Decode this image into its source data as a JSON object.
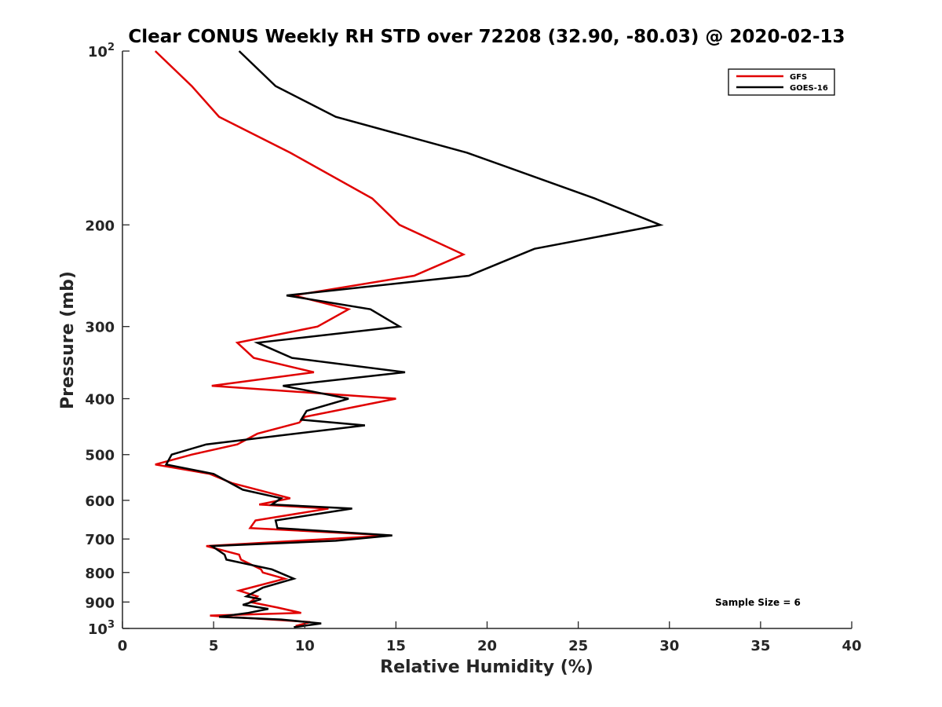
{
  "chart_data": {
    "type": "line",
    "title": "Clear CONUS Weekly RH STD over 72208 (32.90, -80.03) @ 2020-02-13",
    "xlabel": "Relative Humidity (%)",
    "ylabel": "Pressure (mb)",
    "xlim": [
      0,
      40
    ],
    "ylim": [
      100,
      1000
    ],
    "y_scale": "log",
    "y_reversed": true,
    "x_ticks": [
      0,
      5,
      10,
      15,
      20,
      25,
      30,
      35,
      40
    ],
    "x_tick_labels": [
      "0",
      "5",
      "10",
      "15",
      "20",
      "25",
      "30",
      "35",
      "40"
    ],
    "y_ticks": [
      100,
      200,
      300,
      400,
      500,
      600,
      700,
      800,
      900,
      1000
    ],
    "y_tick_labels": [
      {
        "base": "10",
        "exp": "2"
      },
      {
        "base": "200",
        "exp": ""
      },
      {
        "base": "300",
        "exp": ""
      },
      {
        "base": "400",
        "exp": ""
      },
      {
        "base": "500",
        "exp": ""
      },
      {
        "base": "600",
        "exp": ""
      },
      {
        "base": "700",
        "exp": ""
      },
      {
        "base": "800",
        "exp": ""
      },
      {
        "base": "900",
        "exp": ""
      },
      {
        "base": "10",
        "exp": "3"
      }
    ],
    "grid": false,
    "legend_position": "top-right",
    "annotation": "Sample Size = 6",
    "series": [
      {
        "name": "GFS",
        "color": "#e00000",
        "points": [
          [
            1.8,
            100
          ],
          [
            3.8,
            115
          ],
          [
            5.3,
            130
          ],
          [
            9.2,
            150
          ],
          [
            13.7,
            180
          ],
          [
            15.2,
            200
          ],
          [
            18.7,
            225
          ],
          [
            16.0,
            245
          ],
          [
            9.4,
            265
          ],
          [
            12.4,
            280
          ],
          [
            10.7,
            300
          ],
          [
            6.3,
            320
          ],
          [
            7.2,
            340
          ],
          [
            10.5,
            360
          ],
          [
            4.9,
            380
          ],
          [
            15.0,
            400
          ],
          [
            10.0,
            430
          ],
          [
            9.7,
            440
          ],
          [
            7.4,
            460
          ],
          [
            6.3,
            480
          ],
          [
            3.8,
            500
          ],
          [
            1.8,
            520
          ],
          [
            4.8,
            540
          ],
          [
            6.0,
            560
          ],
          [
            9.2,
            595
          ],
          [
            7.5,
            610
          ],
          [
            11.3,
            620
          ],
          [
            7.3,
            650
          ],
          [
            7.0,
            670
          ],
          [
            14.7,
            690
          ],
          [
            4.6,
            720
          ],
          [
            6.4,
            745
          ],
          [
            6.5,
            760
          ],
          [
            7.6,
            790
          ],
          [
            7.7,
            800
          ],
          [
            8.9,
            820
          ],
          [
            6.4,
            860
          ],
          [
            7.4,
            880
          ],
          [
            7.0,
            900
          ],
          [
            8.5,
            920
          ],
          [
            9.8,
            940
          ],
          [
            4.8,
            950
          ],
          [
            10.3,
            975
          ],
          [
            9.5,
            990
          ]
        ]
      },
      {
        "name": "GOES-16",
        "color": "#000000",
        "points": [
          [
            6.4,
            100
          ],
          [
            8.4,
            115
          ],
          [
            11.7,
            130
          ],
          [
            18.9,
            150
          ],
          [
            25.9,
            180
          ],
          [
            29.5,
            200
          ],
          [
            22.6,
            220
          ],
          [
            19.0,
            245
          ],
          [
            9.0,
            265
          ],
          [
            13.6,
            280
          ],
          [
            15.2,
            300
          ],
          [
            7.4,
            320
          ],
          [
            9.3,
            340
          ],
          [
            15.5,
            360
          ],
          [
            8.8,
            380
          ],
          [
            12.4,
            400
          ],
          [
            10.1,
            420
          ],
          [
            9.8,
            435
          ],
          [
            13.3,
            445
          ],
          [
            4.6,
            480
          ],
          [
            2.7,
            500
          ],
          [
            2.4,
            520
          ],
          [
            5.0,
            540
          ],
          [
            6.6,
            575
          ],
          [
            8.7,
            595
          ],
          [
            8.2,
            610
          ],
          [
            12.6,
            620
          ],
          [
            8.4,
            650
          ],
          [
            8.5,
            670
          ],
          [
            14.8,
            690
          ],
          [
            11.7,
            705
          ],
          [
            4.9,
            720
          ],
          [
            5.6,
            745
          ],
          [
            5.7,
            760
          ],
          [
            8.2,
            790
          ],
          [
            9.4,
            820
          ],
          [
            7.7,
            850
          ],
          [
            6.8,
            880
          ],
          [
            7.6,
            890
          ],
          [
            6.6,
            910
          ],
          [
            8.0,
            925
          ],
          [
            6.9,
            940
          ],
          [
            5.3,
            955
          ],
          [
            8.7,
            965
          ],
          [
            10.9,
            980
          ],
          [
            9.4,
            995
          ]
        ]
      }
    ]
  }
}
